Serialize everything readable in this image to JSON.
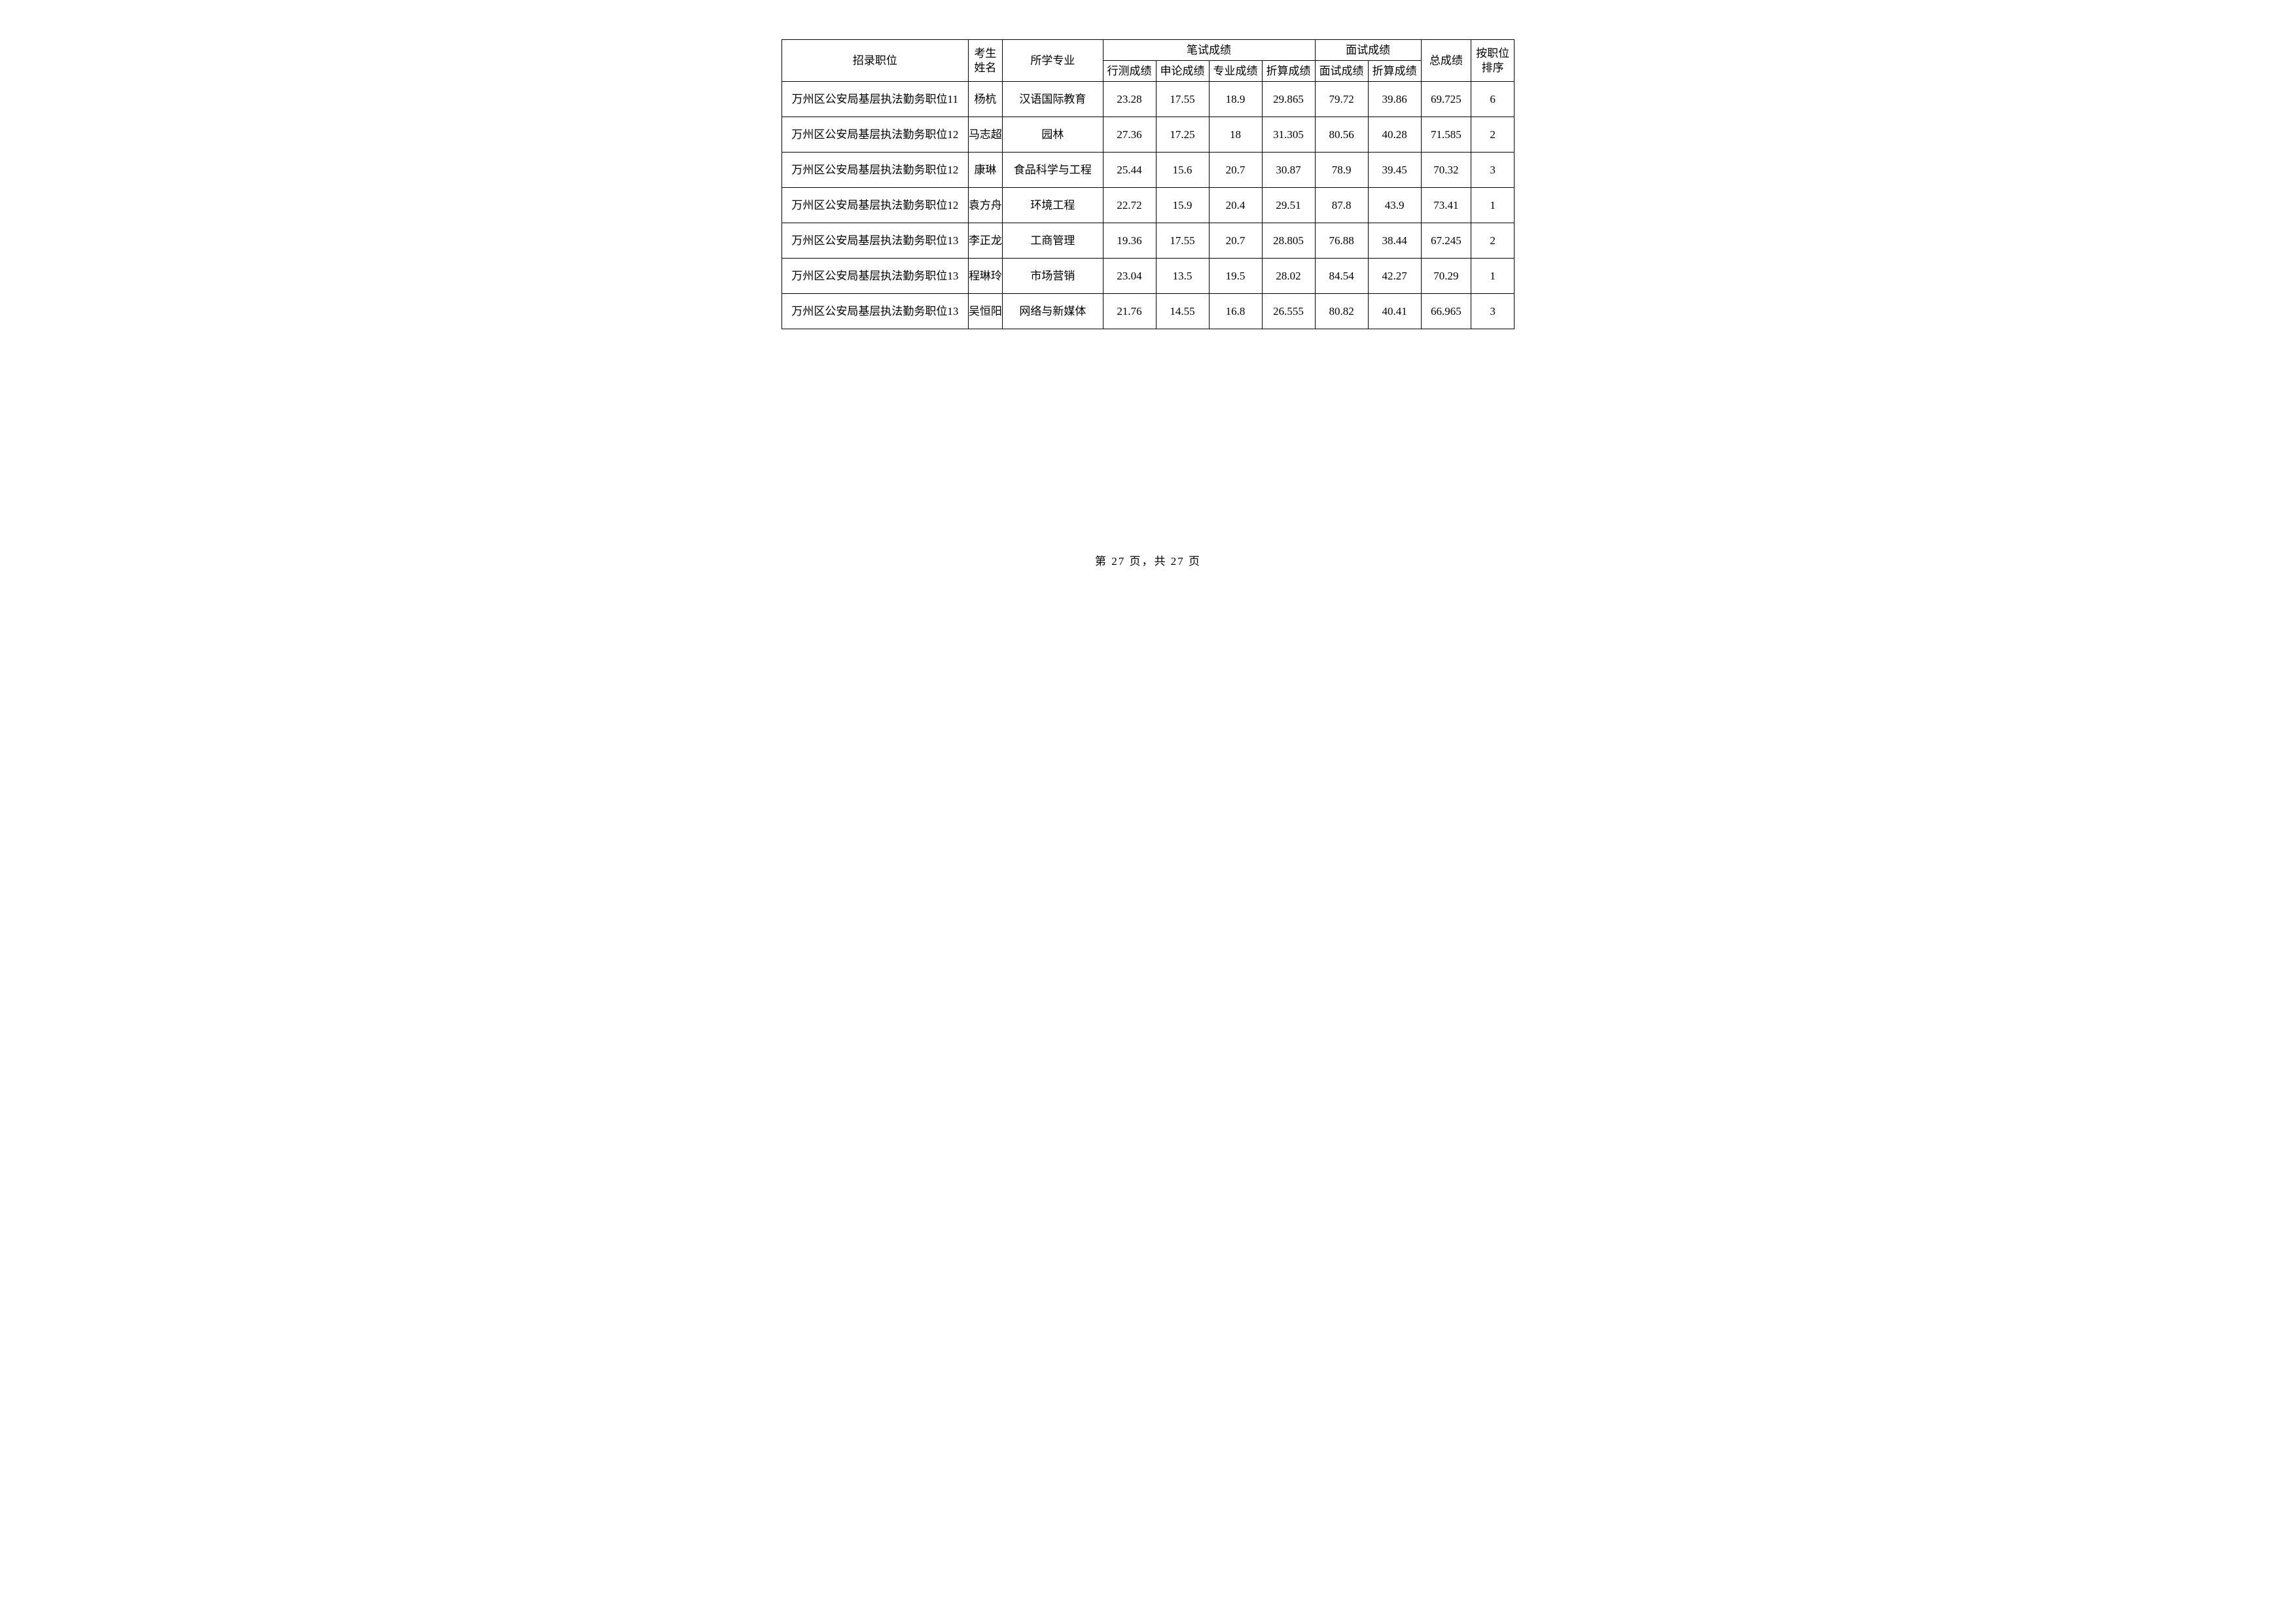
{
  "headers": {
    "position": "招录职位",
    "name_l1": "考生",
    "name_l2": "姓名",
    "major": "所学专业",
    "written_group": "笔试成绩",
    "interview_group": "面试成绩",
    "total": "总成绩",
    "rank_l1": "按职位",
    "rank_l2": "排序",
    "xingce": "行测成绩",
    "shenlun": "申论成绩",
    "zhuanye": "专业成绩",
    "zhesuan_w": "折算成绩",
    "mianshi": "面试成绩",
    "zhesuan_i": "折算成绩"
  },
  "rows": [
    {
      "position": "万州区公安局基层执法勤务职位11",
      "name": "杨杭",
      "major": "汉语国际教育",
      "xc": "23.28",
      "sl": "17.55",
      "zy": "18.9",
      "zw": "29.865",
      "ms": "79.72",
      "zi": "39.86",
      "total": "69.725",
      "rank": "6"
    },
    {
      "position": "万州区公安局基层执法勤务职位12",
      "name": "马志超",
      "major": "园林",
      "xc": "27.36",
      "sl": "17.25",
      "zy": "18",
      "zw": "31.305",
      "ms": "80.56",
      "zi": "40.28",
      "total": "71.585",
      "rank": "2"
    },
    {
      "position": "万州区公安局基层执法勤务职位12",
      "name": "康琳",
      "major": "食品科学与工程",
      "xc": "25.44",
      "sl": "15.6",
      "zy": "20.7",
      "zw": "30.87",
      "ms": "78.9",
      "zi": "39.45",
      "total": "70.32",
      "rank": "3"
    },
    {
      "position": "万州区公安局基层执法勤务职位12",
      "name": "袁方舟",
      "major": "环境工程",
      "xc": "22.72",
      "sl": "15.9",
      "zy": "20.4",
      "zw": "29.51",
      "ms": "87.8",
      "zi": "43.9",
      "total": "73.41",
      "rank": "1"
    },
    {
      "position": "万州区公安局基层执法勤务职位13",
      "name": "李正龙",
      "major": "工商管理",
      "xc": "19.36",
      "sl": "17.55",
      "zy": "20.7",
      "zw": "28.805",
      "ms": "76.88",
      "zi": "38.44",
      "total": "67.245",
      "rank": "2"
    },
    {
      "position": "万州区公安局基层执法勤务职位13",
      "name": "程琳玲",
      "major": "市场营销",
      "xc": "23.04",
      "sl": "13.5",
      "zy": "19.5",
      "zw": "28.02",
      "ms": "84.54",
      "zi": "42.27",
      "total": "70.29",
      "rank": "1"
    },
    {
      "position": "万州区公安局基层执法勤务职位13",
      "name": "吴恒阳",
      "major": "网络与新媒体",
      "xc": "21.76",
      "sl": "14.55",
      "zy": "16.8",
      "zw": "26.555",
      "ms": "80.82",
      "zi": "40.41",
      "total": "66.965",
      "rank": "3"
    }
  ],
  "footer": "第 27 页，共 27 页"
}
